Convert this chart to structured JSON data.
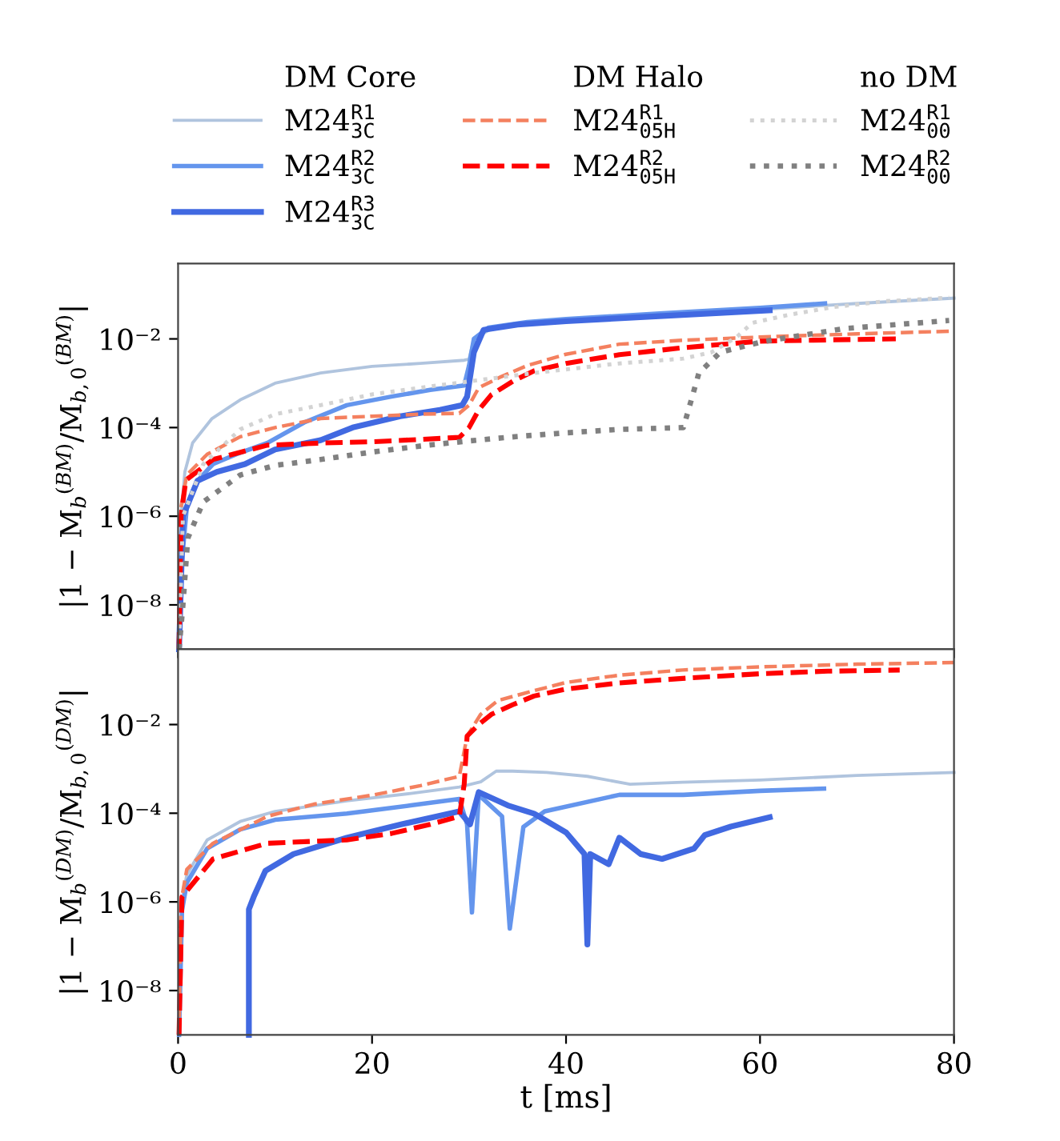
{
  "chart_data": [
    {
      "type": "line",
      "ylabel": "|1 − M$_{b}$$^{(BM)}$/M$_{b,0}$$^{(BM)}$|",
      "log": "y",
      "grid": false,
      "legend": "top",
      "tick_labels": "y",
      "annotations": [
        "DM Core",
        "DM Halo",
        "no DM"
      ],
      "xlim": [
        0,
        80
      ],
      "xticks": [
        0,
        20,
        40,
        60,
        80
      ],
      "ylim": [
        1e-09,
        0.5
      ],
      "yticks": [
        {
          "value": 1e-08,
          "label": "10⁻⁸"
        },
        {
          "value": 1e-06,
          "label": "10⁻⁶"
        },
        {
          "value": 0.0001,
          "label": "10⁻⁴"
        },
        {
          "value": 0.01,
          "label": "10⁻²"
        }
      ],
      "series": [
        {
          "name": "M24$^{R1}$$_{3C}$",
          "color": "#b0c4de",
          "line_style": "solid",
          "x": [
            0.3,
            0.7,
            1.5,
            3.5,
            6.4,
            10,
            14.7,
            20,
            25,
            29.5,
            30,
            30.5,
            32.3,
            36,
            40,
            50,
            60,
            70,
            80
          ],
          "values": [
            1e-06,
            1e-05,
            4.5e-05,
            0.00016,
            0.00042,
            0.001,
            0.0017,
            0.0024,
            0.0028,
            0.0033,
            0.0035,
            0.01,
            0.017,
            0.022,
            0.026,
            0.035,
            0.046,
            0.063,
            0.083
          ]
        },
        {
          "name": "M24$^{R2}$$_{3C}$",
          "color": "#6495ed",
          "line_style": "solid",
          "x": [
            0.1,
            0.4,
            0.9,
            2,
            3.6,
            6,
            9.2,
            13,
            17.4,
            22,
            26,
            29.5,
            30,
            30.5,
            32,
            36,
            40,
            50,
            60,
            66.7
          ],
          "values": [
            1e-09,
            1e-07,
            1.6e-06,
            6.3e-06,
            1.5e-05,
            2.5e-05,
            4.5e-05,
            0.00013,
            0.00032,
            0.0005,
            0.00071,
            0.00089,
            0.0025,
            0.01,
            0.018,
            0.024,
            0.028,
            0.038,
            0.05,
            0.063
          ]
        },
        {
          "name": "M24$^{R3}$$_{3C}$",
          "color": "#4169e1",
          "line_style": "solid",
          "x": [
            0.1,
            0.5,
            2,
            4,
            6.9,
            10,
            14.7,
            18,
            22.9,
            27,
            29.3,
            29.8,
            30.5,
            31.5,
            35,
            40,
            50,
            61
          ],
          "values": [
            1e-09,
            1e-06,
            6.3e-06,
            1e-05,
            1.5e-05,
            3.2e-05,
            5.2e-05,
            0.0001,
            0.00018,
            0.00025,
            0.00032,
            0.0005,
            0.005,
            0.016,
            0.021,
            0.025,
            0.033,
            0.044
          ]
        },
        {
          "name": "M24$^{R1}$$_{05H}$",
          "color": "#f4805f",
          "line_style": "dashed",
          "x": [
            0.3,
            0.9,
            3,
            6.4,
            10,
            14.7,
            20,
            25,
            29,
            30,
            31,
            33.3,
            36,
            40,
            45.5,
            52,
            60,
            70,
            80
          ],
          "values": [
            1.6e-06,
            8.5e-06,
            2.5e-05,
            6.2e-05,
            0.0001,
            0.00016,
            0.00018,
            0.0002,
            0.00021,
            0.00032,
            0.00079,
            0.0014,
            0.0025,
            0.0045,
            0.0076,
            0.0093,
            0.011,
            0.013,
            0.015
          ]
        },
        {
          "name": "M24$^{R2}$$_{05H}$",
          "color": "#ff0000",
          "line_style": "dashed",
          "x": [
            0.1,
            0.3,
            0.8,
            3.6,
            9.2,
            15,
            20.2,
            25,
            29,
            30,
            31,
            32.3,
            34.5,
            36.7,
            40,
            45.5,
            52,
            60,
            67,
            74
          ],
          "values": [
            1e-09,
            1e-06,
            6.5e-06,
            1.9e-05,
            4e-05,
            4.5e-05,
            4.8e-05,
            5.4e-05,
            6e-05,
            0.0001,
            0.00025,
            0.00055,
            0.0011,
            0.0019,
            0.0028,
            0.0044,
            0.0063,
            0.0089,
            0.0095,
            0.01
          ]
        },
        {
          "name": "M24$^{R1}$$_{00}$",
          "color": "#d3d3d3",
          "line_style": "dotted",
          "x": [
            0.1,
            0.5,
            2.6,
            6.4,
            10,
            14.7,
            20,
            25.7,
            30,
            36.7,
            45.5,
            52.1,
            55,
            57.6,
            59.2,
            63,
            67.5,
            73,
            79.5
          ],
          "values": [
            1e-09,
            1e-06,
            1.5e-05,
            9.1e-05,
            0.0002,
            0.00032,
            0.00056,
            0.00083,
            0.0011,
            0.0017,
            0.0028,
            0.0036,
            0.005,
            0.011,
            0.023,
            0.035,
            0.052,
            0.071,
            0.085
          ]
        },
        {
          "name": "M24$^{R2}$$_{00}$",
          "color": "#808080",
          "line_style": "dotted",
          "x": [
            0.1,
            0.5,
            1,
            2.6,
            6.4,
            10,
            14.7,
            20,
            25.7,
            30,
            35,
            40,
            45.5,
            52.1,
            52.6,
            53.7,
            55.9,
            60.3,
            68.6,
            79.5
          ],
          "values": [
            1e-09,
            1e-08,
            3.2e-07,
            2.1e-06,
            8.5e-06,
            1.4e-05,
            1.9e-05,
            2.8e-05,
            4e-05,
            5e-05,
            6.3e-05,
            7.6e-05,
            9.1e-05,
            0.0001,
            0.00024,
            0.0017,
            0.005,
            0.0087,
            0.017,
            0.026
          ]
        }
      ]
    },
    {
      "type": "line",
      "ylabel": "|1 − M$_{b}$$^{(DM)}$/M$_{b,0}$$^{(DM)}$|",
      "xlabel": "t [ms]",
      "log": "y",
      "grid": false,
      "xlim": [
        0,
        80
      ],
      "xticks": [
        0,
        20,
        40,
        60,
        80
      ],
      "ylim": [
        1e-09,
        0.5
      ],
      "yticks": [
        {
          "value": 1e-08,
          "label": "10⁻⁸"
        },
        {
          "value": 1e-06,
          "label": "10⁻⁶"
        },
        {
          "value": 0.0001,
          "label": "10⁻⁴"
        },
        {
          "value": 0.01,
          "label": "10⁻²"
        }
      ],
      "series": [
        {
          "color": "#b0c4de",
          "line_style": "solid",
          "x": [
            0.1,
            0.4,
            0.9,
            3,
            6.4,
            10,
            17.4,
            24,
            29,
            31.2,
            32.8,
            34.5,
            38,
            42.2,
            46.6,
            52,
            60,
            70,
            80
          ],
          "values": [
            1e-09,
            1e-06,
            4.1e-06,
            2.5e-05,
            6.5e-05,
            0.00011,
            0.00019,
            0.00028,
            0.00039,
            0.00051,
            0.00089,
            0.00089,
            0.00083,
            0.00068,
            0.00045,
            0.0005,
            0.00056,
            0.00071,
            0.00083
          ]
        },
        {
          "color": "#6495ed",
          "line_style": "solid",
          "x": [
            0.1,
            0.4,
            0.9,
            3,
            6.4,
            10,
            17.4,
            24,
            29,
            29.8,
            30.3,
            31,
            33.4,
            34.2,
            35.6,
            37.8,
            45.5,
            52.1,
            60,
            66.6
          ],
          "values": [
            1e-09,
            6.3e-07,
            2.7e-06,
            1.6e-05,
            4.3e-05,
            7.1e-05,
            9.8e-05,
            0.00015,
            0.00021,
            5.6e-05,
            5.8e-07,
            0.00026,
            8.5e-05,
            2.5e-07,
            4.9e-05,
            0.00011,
            0.00026,
            0.00026,
            0.00032,
            0.00036
          ]
        },
        {
          "color": "#4169e1",
          "line_style": "solid",
          "x": [
            7.3,
            7.3,
            7.8,
            9,
            11.9,
            17.4,
            23,
            29,
            30.1,
            31,
            34,
            36.7,
            40,
            41.9,
            42.2,
            42.5,
            44.4,
            45.5,
            47.7,
            49.9,
            53.2,
            54.3,
            57,
            61
          ],
          "values": [
            1e-09,
            6.8e-07,
            1.3e-06,
            5e-06,
            1.2e-05,
            2.8e-05,
            5.6e-05,
            0.00011,
            5.6e-05,
            0.0003,
            0.00015,
            9.8e-05,
            3.7e-05,
            1.2e-05,
            1.1e-07,
            1.2e-05,
            7.1e-06,
            2.8e-05,
            1.2e-05,
            9.3e-06,
            1.6e-05,
            3.2e-05,
            5e-05,
            8.1e-05
          ]
        },
        {
          "color": "#f4805f",
          "line_style": "dashed",
          "x": [
            0.1,
            0.3,
            0.9,
            3.6,
            9.2,
            14,
            20.2,
            25,
            29,
            29.8,
            31.2,
            33,
            36.7,
            40,
            45.5,
            52,
            60,
            70,
            80
          ],
          "values": [
            1e-09,
            1e-06,
            5.4e-06,
            2.1e-05,
            8.5e-05,
            0.00016,
            0.00026,
            0.00042,
            0.00068,
            0.0055,
            0.017,
            0.035,
            0.058,
            0.089,
            0.13,
            0.17,
            0.2,
            0.23,
            0.25
          ]
        },
        {
          "color": "#ff0000",
          "line_style": "dashed",
          "x": [
            0.1,
            0.4,
            3.6,
            9.2,
            17.4,
            22,
            26,
            29,
            29.5,
            29.8,
            31,
            32.3,
            34.5,
            36.7,
            40,
            45.5,
            52,
            60,
            67,
            74.4
          ],
          "values": [
            1e-09,
            1.3e-06,
            9.3e-06,
            2.1e-05,
            2.5e-05,
            3.5e-05,
            5.6e-05,
            8.5e-05,
            0.00045,
            0.0055,
            0.01,
            0.017,
            0.028,
            0.044,
            0.063,
            0.087,
            0.11,
            0.14,
            0.16,
            0.17
          ]
        }
      ]
    }
  ]
}
